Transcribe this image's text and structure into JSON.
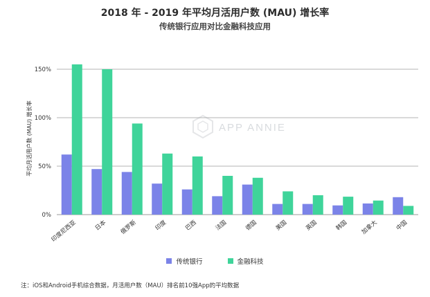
{
  "title": "2018 年 - 2019 年平均月活用户数 (MAU) 增长率",
  "subtitle": "传统银行应用对比金融科技应用",
  "watermark": "APP ANNIE",
  "note": "注：iOS和Android手机综合数据，月活用户数（MAU）排名前10强App的平均数据",
  "colors": {
    "bank": "#7b83e8",
    "fintech": "#3fd49a",
    "grid": "#9a9a9a"
  },
  "chart_data": {
    "type": "bar",
    "title": "2018 年 - 2019 年平均月活用户数 (MAU) 增长率",
    "subtitle": "传统银行应用对比金融科技应用",
    "xlabel": "",
    "ylabel": "平均月活用户数 (MAU) 增长率",
    "ylim": [
      0,
      170
    ],
    "yticks": [
      0,
      50,
      100,
      150
    ],
    "ytick_labels": [
      "0%",
      "50%",
      "100%",
      "150%"
    ],
    "grid": true,
    "legend": "bottom",
    "categories": [
      "印度尼西亚",
      "日本",
      "俄罗斯",
      "印度",
      "巴西",
      "法国",
      "德国",
      "美国",
      "英国",
      "韩国",
      "加拿大",
      "中国"
    ],
    "series": [
      {
        "name": "传统银行",
        "values": [
          62,
          47,
          44,
          32,
          26,
          19,
          31,
          11,
          11,
          9.5,
          11.5,
          18
        ]
      },
      {
        "name": "金融科技",
        "values": [
          155,
          150,
          94,
          63,
          60,
          40,
          38,
          24,
          20,
          18.5,
          14.5,
          9
        ]
      }
    ]
  }
}
